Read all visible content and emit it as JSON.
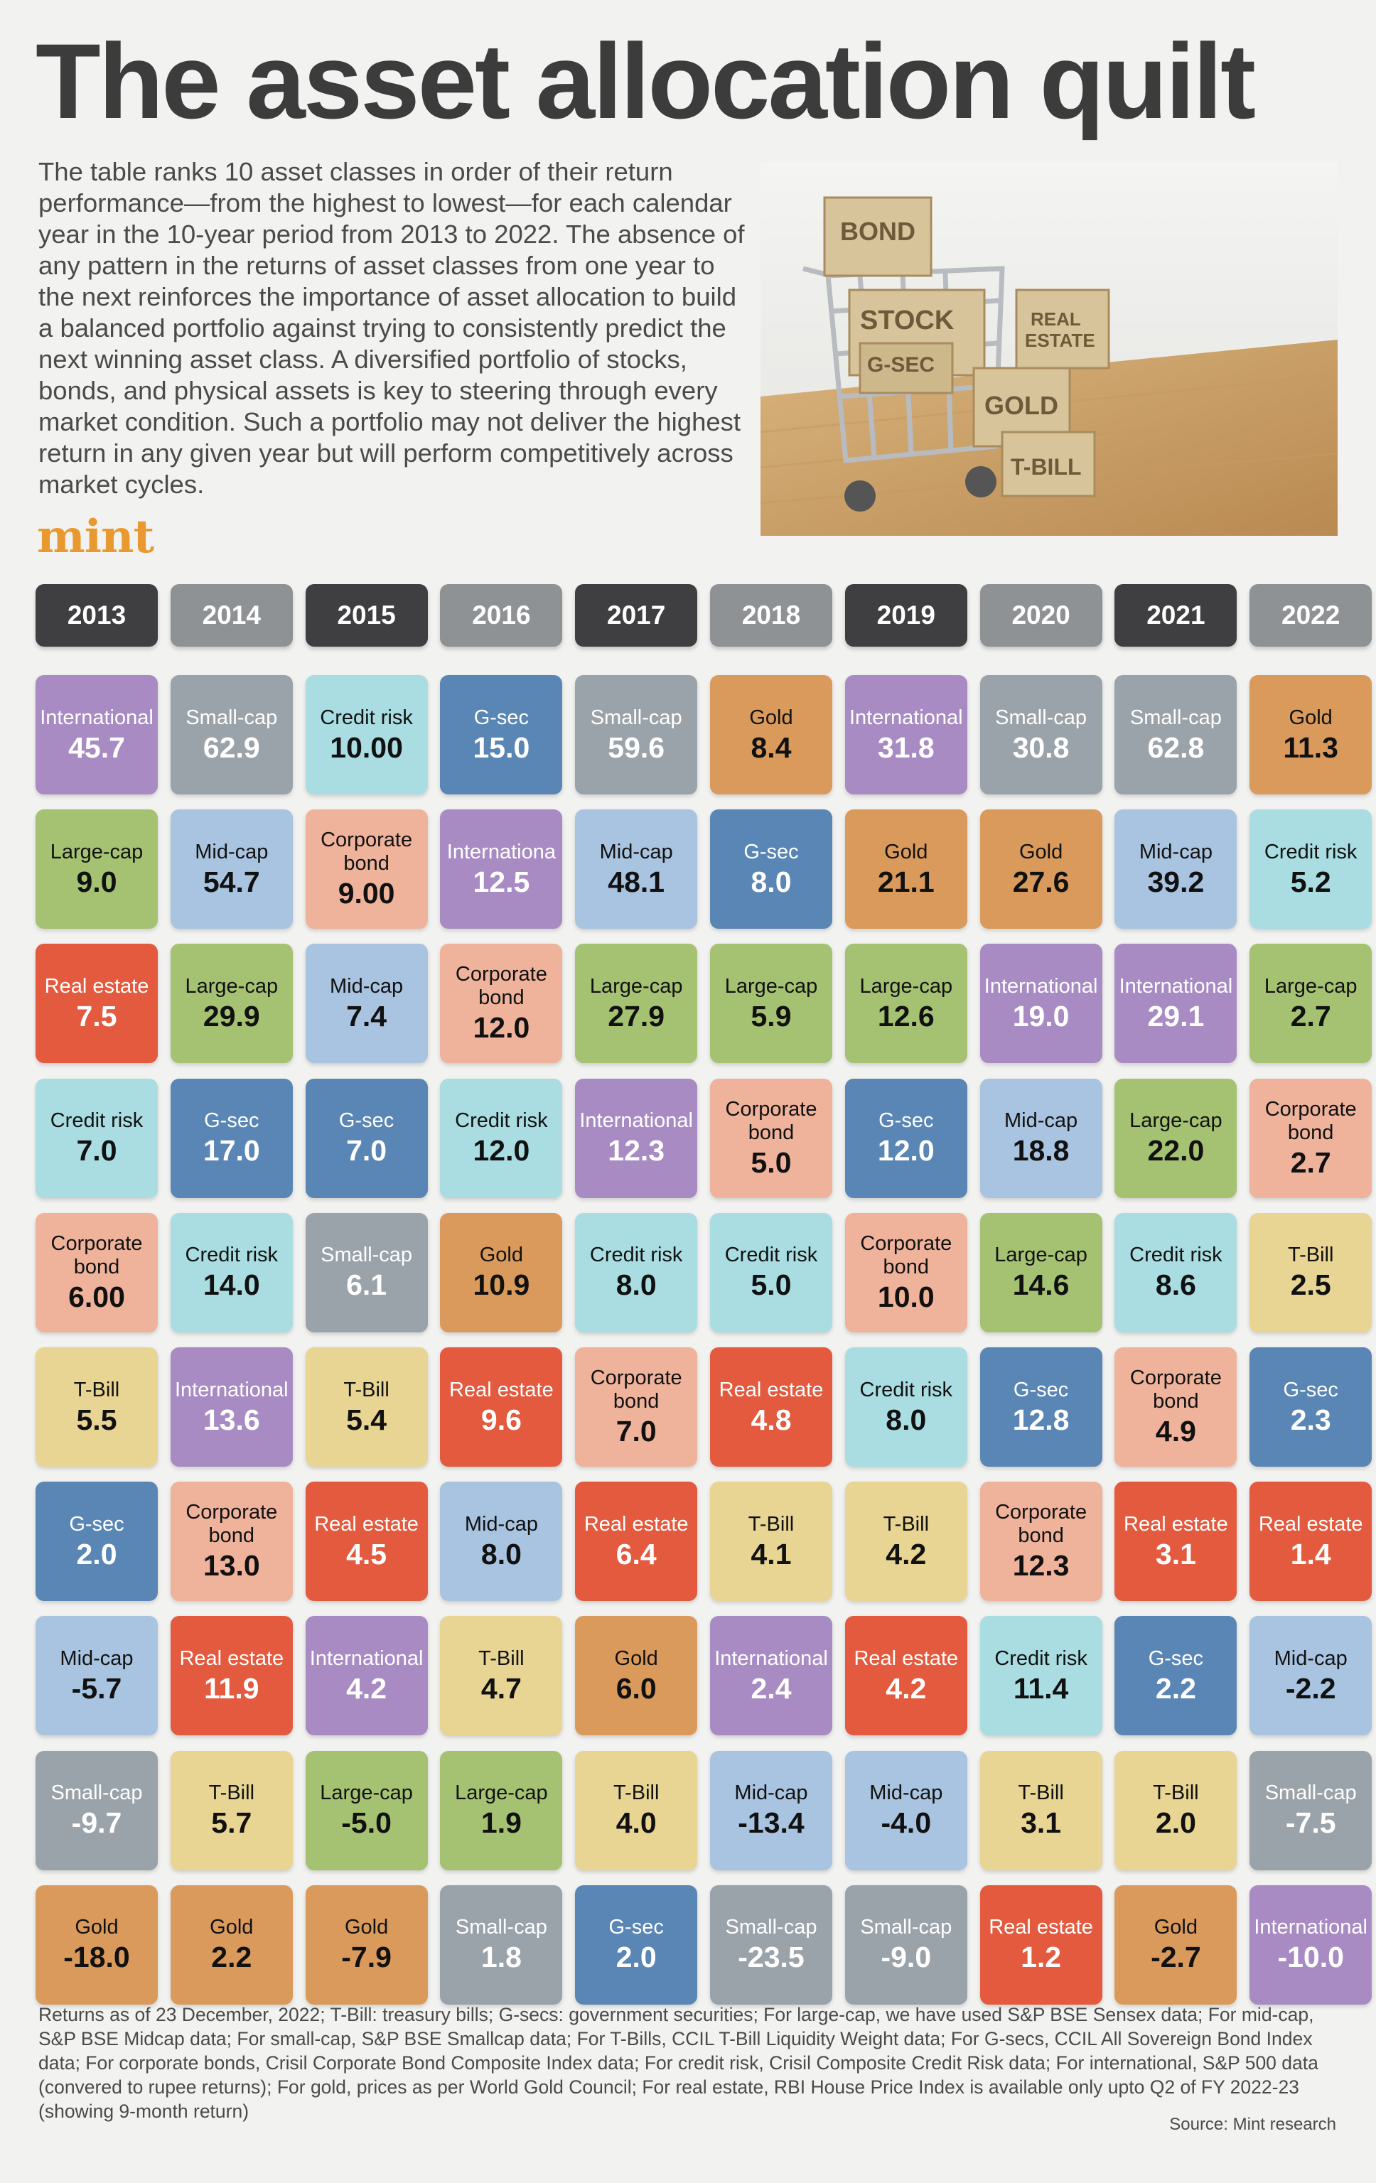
{
  "title": "The asset allocation quilt",
  "intro": "The table ranks 10 asset classes in order of their return performance—from the highest to lowest—for each calendar year in the 10-year period from 2013 to 2022. The absence of any pattern in the returns of asset classes from one year to the next reinforces the importance of asset allocation to build a balanced portfolio against trying to consistently predict the next winning asset class. A diversified portfolio of stocks, bonds, and physical assets is key to steering through every market condition. Such a portfolio may not deliver the highest return in any given year but will perform competitively across market cycles.",
  "logo": "mint",
  "photo_labels": {
    "bond": "BOND",
    "stock": "STOCK",
    "gsec": "G-SEC",
    "real_estate_line1": "REAL",
    "real_estate_line2": "ESTATE",
    "gold": "GOLD",
    "tbill": "T-BILL"
  },
  "colors": {
    "International": "#a98bc4",
    "Small-cap": "#9aa3aa",
    "Credit risk": "#a9dde2",
    "G-sec": "#5a86b5",
    "Gold": "#da9a5c",
    "Large-cap": "#a4c272",
    "Mid-cap": "#a9c4e0",
    "Corporate bond": "#efb39c",
    "Real estate": "#e35a3e",
    "T-Bill": "#e8d594",
    "light_text_assets": [
      "International",
      "Small-cap",
      "G-sec",
      "Real estate"
    ]
  },
  "chart_data": {
    "type": "table",
    "years": [
      "2013",
      "2014",
      "2015",
      "2016",
      "2017",
      "2018",
      "2019",
      "2020",
      "2021",
      "2022"
    ],
    "year_style": [
      "dark",
      "light",
      "dark",
      "light",
      "dark",
      "light",
      "dark",
      "light",
      "dark",
      "light"
    ],
    "columns": [
      [
        {
          "asset": "International",
          "label": "International",
          "value": "45.7"
        },
        {
          "asset": "Large-cap",
          "label": "Large-cap",
          "value": "9.0"
        },
        {
          "asset": "Real estate",
          "label": "Real estate",
          "value": "7.5"
        },
        {
          "asset": "Credit risk",
          "label": "Credit risk",
          "value": "7.0"
        },
        {
          "asset": "Corporate bond",
          "label": "Corporate bond",
          "value": "6.00"
        },
        {
          "asset": "T-Bill",
          "label": "T-Bill",
          "value": "5.5"
        },
        {
          "asset": "G-sec",
          "label": "G-sec",
          "value": "2.0"
        },
        {
          "asset": "Mid-cap",
          "label": "Mid-cap",
          "value": "-5.7"
        },
        {
          "asset": "Small-cap",
          "label": "Small-cap",
          "value": "-9.7"
        },
        {
          "asset": "Gold",
          "label": "Gold",
          "value": "-18.0"
        }
      ],
      [
        {
          "asset": "Small-cap",
          "label": "Small-cap",
          "value": "62.9"
        },
        {
          "asset": "Mid-cap",
          "label": "Mid-cap",
          "value": "54.7"
        },
        {
          "asset": "Large-cap",
          "label": "Large-cap",
          "value": "29.9"
        },
        {
          "asset": "G-sec",
          "label": "G-sec",
          "value": "17.0"
        },
        {
          "asset": "Credit risk",
          "label": "Credit risk",
          "value": "14.0"
        },
        {
          "asset": "International",
          "label": "International",
          "value": "13.6"
        },
        {
          "asset": "Corporate bond",
          "label": "Corporate bond",
          "value": "13.0"
        },
        {
          "asset": "Real estate",
          "label": "Real estate",
          "value": "11.9"
        },
        {
          "asset": "T-Bill",
          "label": "T-Bill",
          "value": "5.7"
        },
        {
          "asset": "Gold",
          "label": "Gold",
          "value": "2.2"
        }
      ],
      [
        {
          "asset": "Credit risk",
          "label": "Credit risk",
          "value": "10.00"
        },
        {
          "asset": "Corporate bond",
          "label": "Corporate bond",
          "value": "9.00"
        },
        {
          "asset": "Mid-cap",
          "label": "Mid-cap",
          "value": "7.4"
        },
        {
          "asset": "G-sec",
          "label": "G-sec",
          "value": "7.0"
        },
        {
          "asset": "Small-cap",
          "label": "Small-cap",
          "value": "6.1"
        },
        {
          "asset": "T-Bill",
          "label": "T-Bill",
          "value": "5.4"
        },
        {
          "asset": "Real estate",
          "label": "Real estate",
          "value": "4.5"
        },
        {
          "asset": "International",
          "label": "International",
          "value": "4.2"
        },
        {
          "asset": "Large-cap",
          "label": "Large-cap",
          "value": "-5.0"
        },
        {
          "asset": "Gold",
          "label": "Gold",
          "value": "-7.9"
        }
      ],
      [
        {
          "asset": "G-sec",
          "label": "G-sec",
          "value": "15.0"
        },
        {
          "asset": "International",
          "label": "Internationa",
          "value": "12.5"
        },
        {
          "asset": "Corporate bond",
          "label": "Corporate bond",
          "value": "12.0"
        },
        {
          "asset": "Credit risk",
          "label": "Credit risk",
          "value": "12.0"
        },
        {
          "asset": "Gold",
          "label": "Gold",
          "value": "10.9"
        },
        {
          "asset": "Real estate",
          "label": "Real estate",
          "value": "9.6"
        },
        {
          "asset": "Mid-cap",
          "label": "Mid-cap",
          "value": "8.0"
        },
        {
          "asset": "T-Bill",
          "label": "T-Bill",
          "value": "4.7"
        },
        {
          "asset": "Large-cap",
          "label": "Large-cap",
          "value": "1.9"
        },
        {
          "asset": "Small-cap",
          "label": "Small-cap",
          "value": "1.8"
        }
      ],
      [
        {
          "asset": "Small-cap",
          "label": "Small-cap",
          "value": "59.6"
        },
        {
          "asset": "Mid-cap",
          "label": "Mid-cap",
          "value": "48.1"
        },
        {
          "asset": "Large-cap",
          "label": "Large-cap",
          "value": "27.9"
        },
        {
          "asset": "International",
          "label": "International",
          "value": "12.3"
        },
        {
          "asset": "Credit risk",
          "label": "Credit risk",
          "value": "8.0"
        },
        {
          "asset": "Corporate bond",
          "label": "Corporate bond",
          "value": "7.0"
        },
        {
          "asset": "Real estate",
          "label": "Real estate",
          "value": "6.4"
        },
        {
          "asset": "Gold",
          "label": "Gold",
          "value": "6.0"
        },
        {
          "asset": "T-Bill",
          "label": "T-Bill",
          "value": "4.0"
        },
        {
          "asset": "G-sec",
          "label": "G-sec",
          "value": "2.0"
        }
      ],
      [
        {
          "asset": "Gold",
          "label": "Gold",
          "value": "8.4"
        },
        {
          "asset": "G-sec",
          "label": "G-sec",
          "value": "8.0"
        },
        {
          "asset": "Large-cap",
          "label": "Large-cap",
          "value": "5.9"
        },
        {
          "asset": "Corporate bond",
          "label": "Corporate bond",
          "value": "5.0"
        },
        {
          "asset": "Credit risk",
          "label": "Credit risk",
          "value": "5.0"
        },
        {
          "asset": "Real estate",
          "label": "Real estate",
          "value": "4.8"
        },
        {
          "asset": "T-Bill",
          "label": "T-Bill",
          "value": "4.1"
        },
        {
          "asset": "International",
          "label": "International",
          "value": "2.4"
        },
        {
          "asset": "Mid-cap",
          "label": "Mid-cap",
          "value": "-13.4"
        },
        {
          "asset": "Small-cap",
          "label": "Small-cap",
          "value": "-23.5"
        }
      ],
      [
        {
          "asset": "International",
          "label": "International",
          "value": "31.8"
        },
        {
          "asset": "Gold",
          "label": "Gold",
          "value": "21.1"
        },
        {
          "asset": "Large-cap",
          "label": "Large-cap",
          "value": "12.6"
        },
        {
          "asset": "G-sec",
          "label": "G-sec",
          "value": "12.0"
        },
        {
          "asset": "Corporate bond",
          "label": "Corporate bond",
          "value": "10.0"
        },
        {
          "asset": "Credit risk",
          "label": "Credit risk",
          "value": "8.0"
        },
        {
          "asset": "T-Bill",
          "label": "T-Bill",
          "value": "4.2"
        },
        {
          "asset": "Real estate",
          "label": "Real estate",
          "value": "4.2"
        },
        {
          "asset": "Mid-cap",
          "label": "Mid-cap",
          "value": "-4.0"
        },
        {
          "asset": "Small-cap",
          "label": "Small-cap",
          "value": "-9.0"
        }
      ],
      [
        {
          "asset": "Small-cap",
          "label": "Small-cap",
          "value": "30.8"
        },
        {
          "asset": "Gold",
          "label": "Gold",
          "value": "27.6"
        },
        {
          "asset": "International",
          "label": "International",
          "value": "19.0"
        },
        {
          "asset": "Mid-cap",
          "label": "Mid-cap",
          "value": "18.8"
        },
        {
          "asset": "Large-cap",
          "label": "Large-cap",
          "value": "14.6"
        },
        {
          "asset": "G-sec",
          "label": "G-sec",
          "value": "12.8"
        },
        {
          "asset": "Corporate bond",
          "label": "Corporate bond",
          "value": "12.3"
        },
        {
          "asset": "Credit risk",
          "label": "Credit risk",
          "value": "11.4"
        },
        {
          "asset": "T-Bill",
          "label": "T-Bill",
          "value": "3.1"
        },
        {
          "asset": "Real estate",
          "label": "Real estate",
          "value": "1.2"
        }
      ],
      [
        {
          "asset": "Small-cap",
          "label": "Small-cap",
          "value": "62.8"
        },
        {
          "asset": "Mid-cap",
          "label": "Mid-cap",
          "value": "39.2"
        },
        {
          "asset": "International",
          "label": "International",
          "value": "29.1"
        },
        {
          "asset": "Large-cap",
          "label": "Large-cap",
          "value": "22.0"
        },
        {
          "asset": "Credit risk",
          "label": "Credit risk",
          "value": "8.6"
        },
        {
          "asset": "Corporate bond",
          "label": "Corporate bond",
          "value": "4.9"
        },
        {
          "asset": "Real estate",
          "label": "Real estate",
          "value": "3.1"
        },
        {
          "asset": "G-sec",
          "label": "G-sec",
          "value": "2.2"
        },
        {
          "asset": "T-Bill",
          "label": "T-Bill",
          "value": "2.0"
        },
        {
          "asset": "Gold",
          "label": "Gold",
          "value": "-2.7"
        }
      ],
      [
        {
          "asset": "Gold",
          "label": "Gold",
          "value": "11.3"
        },
        {
          "asset": "Credit risk",
          "label": "Credit risk",
          "value": "5.2"
        },
        {
          "asset": "Large-cap",
          "label": "Large-cap",
          "value": "2.7"
        },
        {
          "asset": "Corporate bond",
          "label": "Corporate bond",
          "value": "2.7"
        },
        {
          "asset": "T-Bill",
          "label": "T-Bill",
          "value": "2.5"
        },
        {
          "asset": "G-sec",
          "label": "G-sec",
          "value": "2.3"
        },
        {
          "asset": "Real estate",
          "label": "Real estate",
          "value": "1.4"
        },
        {
          "asset": "Mid-cap",
          "label": "Mid-cap",
          "value": "-2.2"
        },
        {
          "asset": "Small-cap",
          "label": "Small-cap",
          "value": "-7.5"
        },
        {
          "asset": "International",
          "label": "International",
          "value": "-10.0"
        }
      ]
    ]
  },
  "footnote": "Returns as of 23 December, 2022; T-Bill: treasury bills; G-secs: government securities; For large-cap, we have used S&P BSE Sensex data; For mid-cap, S&P BSE Midcap data; For small-cap, S&P BSE Smallcap data; For T-Bills, CCIL T-Bill Liquidity Weight data; For G-secs, CCIL All Sovereign Bond Index data; For corporate bonds, Crisil Corporate Bond Composite Index data; For credit risk, Crisil Composite Credit Risk data; For international, S&P 500 data (convered to rupee returns); For gold, prices as per World Gold Council; For real estate, RBI House Price Index is available only upto Q2 of FY 2022-23 (showing 9-month return)",
  "source": "Source: Mint research"
}
